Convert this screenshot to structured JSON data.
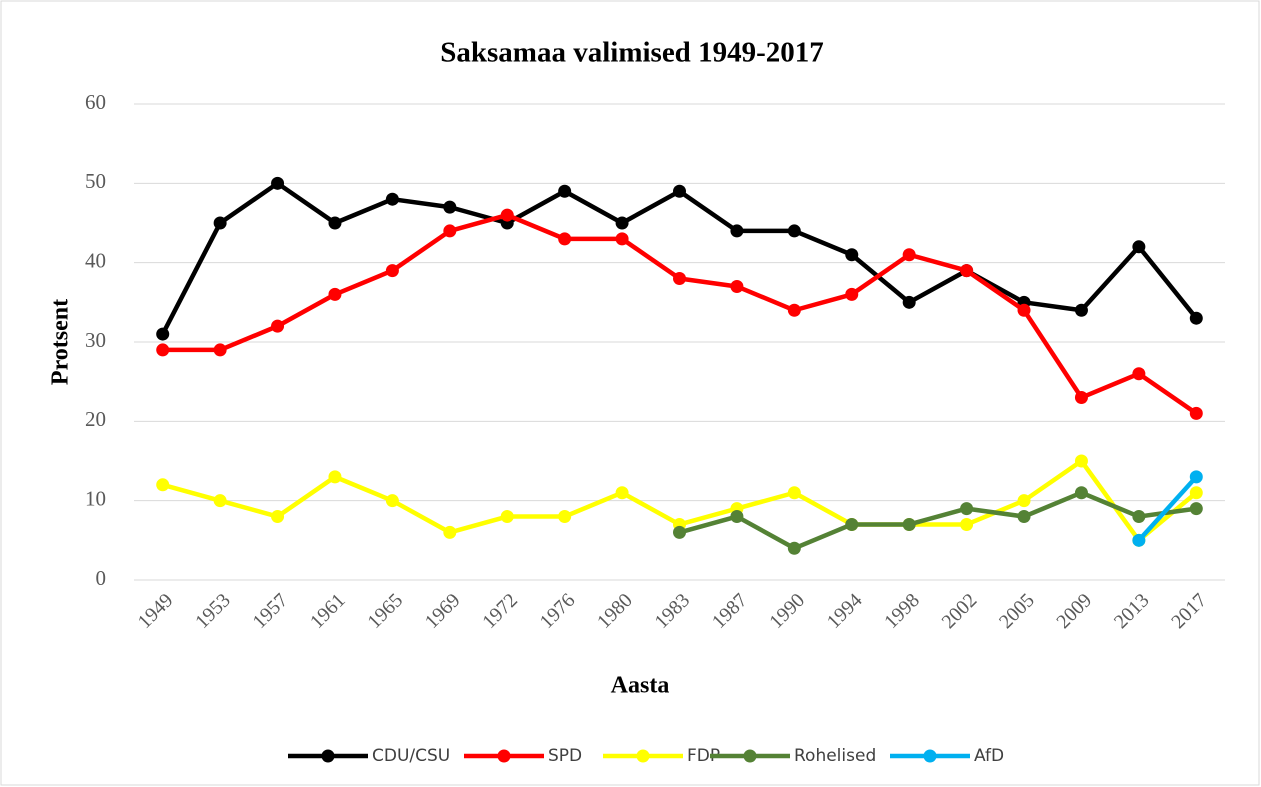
{
  "chart_data": {
    "type": "line",
    "title": "Saksamaa valimised 1949-2017",
    "x_label": "Aasta",
    "y_label": "Protsent",
    "categories": [
      "1949",
      "1953",
      "1957",
      "1961",
      "1965",
      "1969",
      "1972",
      "1976",
      "1980",
      "1983",
      "1987",
      "1990",
      "1994",
      "1998",
      "2002",
      "2005",
      "2009",
      "2013",
      "2017"
    ],
    "series": [
      {
        "name": "CDU/CSU",
        "color": "#000000",
        "values": [
          31,
          45,
          50,
          45,
          48,
          47,
          45,
          49,
          45,
          49,
          44,
          44,
          41,
          35,
          39,
          35,
          34,
          42,
          33
        ]
      },
      {
        "name": "SPD",
        "color": "#ff0000",
        "values": [
          29,
          29,
          32,
          36,
          39,
          44,
          46,
          43,
          43,
          38,
          37,
          34,
          36,
          41,
          39,
          34,
          23,
          26,
          21
        ]
      },
      {
        "name": "FDP",
        "color": "#ffff00",
        "values": [
          12,
          10,
          8,
          13,
          10,
          6,
          8,
          8,
          11,
          7,
          9,
          11,
          7,
          7,
          7,
          10,
          15,
          5,
          11
        ]
      },
      {
        "name": "Rohelised",
        "color": "#548235",
        "values": [
          null,
          null,
          null,
          null,
          null,
          null,
          null,
          null,
          null,
          6,
          8,
          4,
          7,
          7,
          9,
          8,
          11,
          8,
          9
        ]
      },
      {
        "name": "AfD",
        "color": "#00b0f0",
        "values": [
          null,
          null,
          null,
          null,
          null,
          null,
          null,
          null,
          null,
          null,
          null,
          null,
          null,
          null,
          null,
          null,
          null,
          5,
          13
        ]
      }
    ],
    "ylim": [
      0,
      60
    ],
    "yticks": [
      0,
      10,
      20,
      30,
      40,
      50,
      60
    ],
    "grid": true,
    "legend": "bottom"
  }
}
